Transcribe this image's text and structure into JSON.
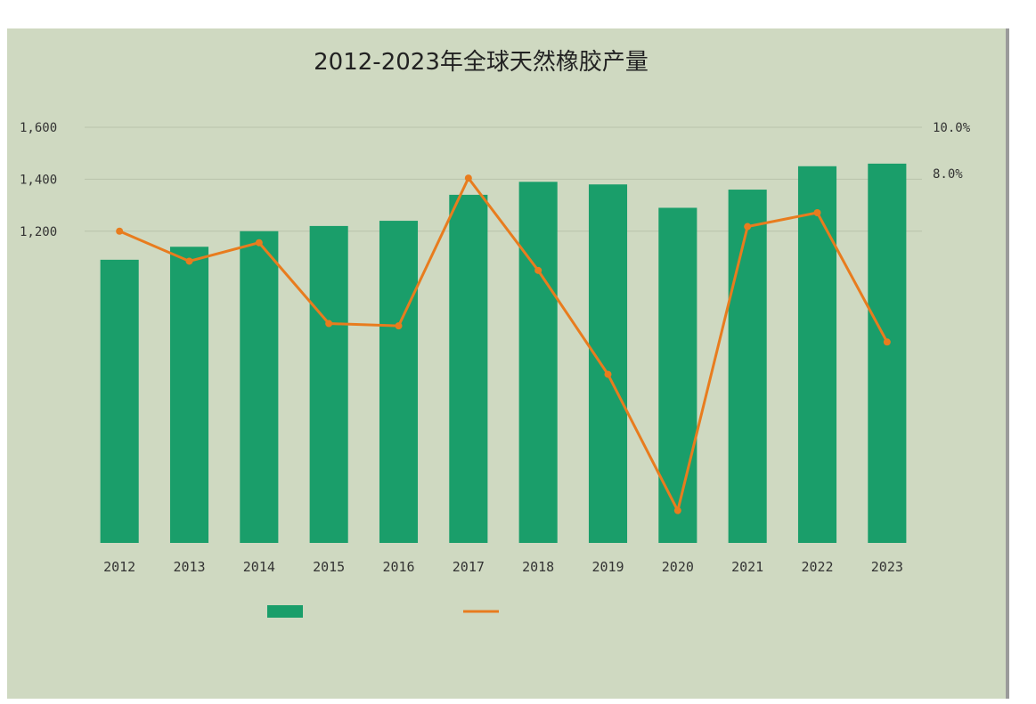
{
  "chart_data": {
    "type": "bar",
    "title": "2012-2023年全球天然橡胶产量",
    "xlabel": "",
    "ylabel": "",
    "categories": [
      "2012",
      "2013",
      "2014",
      "2015",
      "2016",
      "2017",
      "2018",
      "2019",
      "2020",
      "2021",
      "2022",
      "2023"
    ],
    "series": [
      {
        "name": "",
        "axis": "left",
        "kind": "bar",
        "values": [
          1090,
          1140,
          1200,
          1220,
          1240,
          1340,
          1390,
          1380,
          1290,
          1360,
          1450,
          1460
        ]
      },
      {
        "name": "",
        "axis": "right",
        "kind": "line",
        "values": [
          5.5,
          4.2,
          5.0,
          1.5,
          1.4,
          7.8,
          3.8,
          -0.7,
          -6.6,
          5.7,
          6.3,
          0.7
        ]
      }
    ],
    "left_axis": {
      "ticks": [
        "1,600",
        "1,400",
        "1,200"
      ],
      "ylim": [
        0,
        1600
      ]
    },
    "right_axis": {
      "ticks": [
        "10.0%",
        "8.0%"
      ],
      "ylim": [
        -8,
        10
      ]
    },
    "grid": true,
    "legend_position": "bottom",
    "colors": {
      "bar": "#1a9e6a",
      "line": "#e87c1e",
      "panel": "#cfd9c1",
      "grid": "#b9c3ab"
    }
  }
}
